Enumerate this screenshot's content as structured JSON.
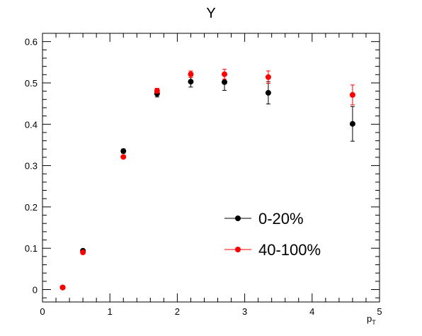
{
  "chart_data": {
    "type": "scatter",
    "title": "Y",
    "xlabel": "p",
    "xlabel_subscript": "T",
    "ylabel": "",
    "xlim": [
      0,
      5
    ],
    "ylim": [
      -0.03,
      0.62
    ],
    "x_ticks": [
      "0",
      "1",
      "2",
      "3",
      "4",
      "5"
    ],
    "y_ticks": [
      "0",
      "0.1",
      "0.2",
      "0.3",
      "0.4",
      "0.5",
      "0.6"
    ],
    "grid": false,
    "legend_position": "bottom-right",
    "series": [
      {
        "name": "0-20%",
        "color": "#000000",
        "points": [
          {
            "x": 0.3,
            "y": 0.005,
            "err": 0.002
          },
          {
            "x": 0.6,
            "y": 0.094,
            "err": 0.003
          },
          {
            "x": 1.2,
            "y": 0.335,
            "err": 0.005
          },
          {
            "x": 1.7,
            "y": 0.474,
            "err": 0.008
          },
          {
            "x": 2.2,
            "y": 0.503,
            "err": 0.013
          },
          {
            "x": 2.7,
            "y": 0.502,
            "err": 0.02
          },
          {
            "x": 3.35,
            "y": 0.476,
            "err": 0.027
          },
          {
            "x": 4.6,
            "y": 0.401,
            "err": 0.042
          }
        ]
      },
      {
        "name": "40-100%",
        "color": "#ff0000",
        "points": [
          {
            "x": 0.3,
            "y": 0.005,
            "err": 0.002
          },
          {
            "x": 0.6,
            "y": 0.09,
            "err": 0.003
          },
          {
            "x": 1.2,
            "y": 0.321,
            "err": 0.004
          },
          {
            "x": 1.7,
            "y": 0.481,
            "err": 0.006
          },
          {
            "x": 2.2,
            "y": 0.521,
            "err": 0.008
          },
          {
            "x": 2.7,
            "y": 0.521,
            "err": 0.012
          },
          {
            "x": 3.35,
            "y": 0.514,
            "err": 0.015
          },
          {
            "x": 4.6,
            "y": 0.471,
            "err": 0.024
          }
        ]
      }
    ]
  }
}
